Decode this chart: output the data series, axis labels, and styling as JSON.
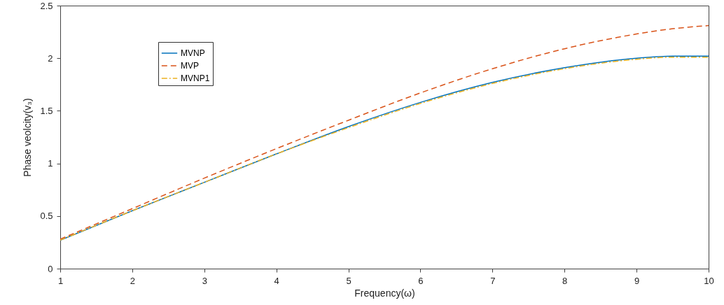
{
  "chart_data": {
    "type": "line",
    "xlabel": "Frequency(ω)",
    "ylabel": "Phase veolcity(v₃)",
    "x": [
      1,
      2,
      3,
      4,
      5,
      6,
      7,
      8,
      9,
      9.5,
      10
    ],
    "series": [
      {
        "name": "MVNP",
        "color": "#0072bd",
        "line_style": "solid",
        "values": [
          0.27,
          0.55,
          0.82,
          1.09,
          1.35,
          1.58,
          1.77,
          1.91,
          2.0,
          2.02,
          2.02
        ]
      },
      {
        "name": "MVP",
        "color": "#d95319",
        "line_style": "dashed",
        "values": [
          0.28,
          0.57,
          0.86,
          1.14,
          1.41,
          1.67,
          1.9,
          2.09,
          2.23,
          2.28,
          2.31
        ]
      },
      {
        "name": "MVNP1",
        "color": "#edb120",
        "line_style": "dashdot",
        "values": [
          0.27,
          0.55,
          0.82,
          1.09,
          1.34,
          1.57,
          1.76,
          1.9,
          1.99,
          2.01,
          2.01
        ]
      }
    ],
    "xlim": [
      1,
      10
    ],
    "ylim": [
      0,
      2.5
    ],
    "xticks": [
      1,
      2,
      3,
      4,
      5,
      6,
      7,
      8,
      9,
      10
    ],
    "yticks": [
      0,
      0.5,
      1,
      1.5,
      2,
      2.5
    ],
    "grid": false,
    "legend": "top left"
  }
}
